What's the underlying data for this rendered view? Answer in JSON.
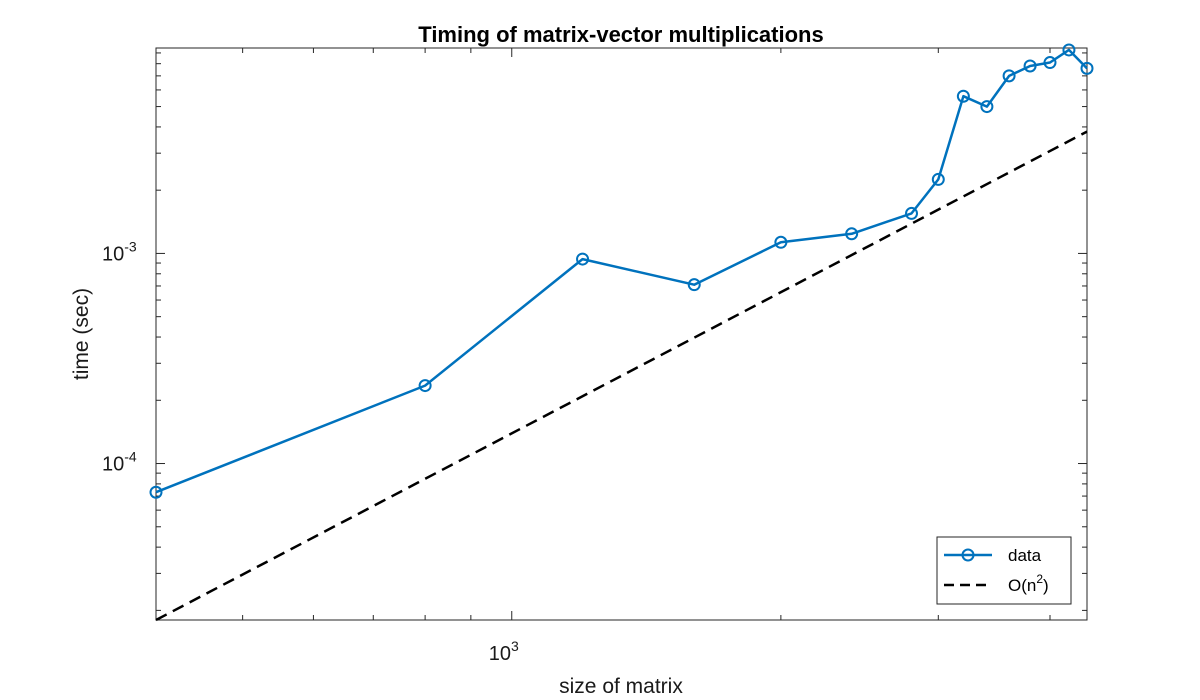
{
  "chart_data": {
    "type": "line",
    "title": "Timing of matrix-vector multiplications",
    "xlabel": "size of matrix",
    "ylabel": "time (sec)",
    "xscale": "log",
    "yscale": "log",
    "xlim": [
      400,
      4400
    ],
    "ylim": [
      1.8e-05,
      0.0095
    ],
    "x_tick_labels": [
      {
        "value": 1000,
        "base": "10",
        "exponent": "3"
      }
    ],
    "y_tick_labels": [
      {
        "value": 0.0001,
        "base": "10",
        "exponent": "-4"
      },
      {
        "value": 0.001,
        "base": "10",
        "exponent": "-3"
      }
    ],
    "grid": false,
    "legend_position": "bottom-right",
    "series": [
      {
        "name": "data",
        "color": "#0072BD",
        "line_style": "solid",
        "marker": "circle",
        "x": [
          400,
          800,
          1200,
          1600,
          2000,
          2400,
          2800,
          3000,
          3200,
          3400,
          3600,
          3800,
          4000,
          4200,
          4400
        ],
        "y": [
          7.3e-05,
          0.000235,
          0.00094,
          0.00071,
          0.00113,
          0.00124,
          0.00155,
          0.00225,
          0.0056,
          0.005,
          0.007,
          0.0078,
          0.0081,
          0.0093,
          0.0076
        ]
      },
      {
        "name": "O(n^2)",
        "color": "#000000",
        "line_style": "dashed",
        "marker": "none",
        "x": [
          400,
          4400
        ],
        "y": [
          1.8e-05,
          0.0038
        ]
      }
    ],
    "legend": [
      {
        "label": "data",
        "exponent": ""
      },
      {
        "label": "O(n",
        "exponent": "2",
        "suffix": ")"
      }
    ]
  }
}
